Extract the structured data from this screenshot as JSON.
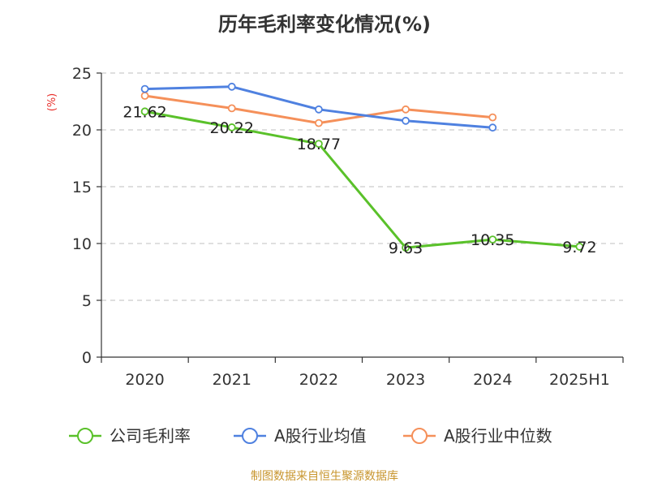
{
  "chart_data": {
    "type": "line",
    "title": "历年毛利率变化情况(%)",
    "ylabel": "(%)",
    "xlabel": "",
    "categories": [
      "2020",
      "2021",
      "2022",
      "2023",
      "2024",
      "2025H1"
    ],
    "ylim": [
      0,
      25
    ],
    "yticks": [
      0,
      5,
      10,
      15,
      20,
      25
    ],
    "grid": true,
    "legend_position": "bottom",
    "series": [
      {
        "name": "公司毛利率",
        "color": "#5ac12a",
        "values": [
          21.62,
          20.22,
          18.77,
          9.63,
          10.35,
          9.72
        ],
        "labels": [
          "21.62",
          "20.22",
          "18.77",
          "9.63",
          "10.35",
          "9.72"
        ]
      },
      {
        "name": "A股行业均值",
        "color": "#4f81e0",
        "values": [
          23.6,
          23.8,
          21.8,
          20.8,
          20.2,
          null
        ]
      },
      {
        "name": "A股行业中位数",
        "color": "#f5905a",
        "values": [
          23.0,
          21.9,
          20.6,
          21.8,
          21.1,
          null
        ]
      }
    ]
  },
  "footer": {
    "source": "制图数据来自恒生聚源数据库"
  }
}
